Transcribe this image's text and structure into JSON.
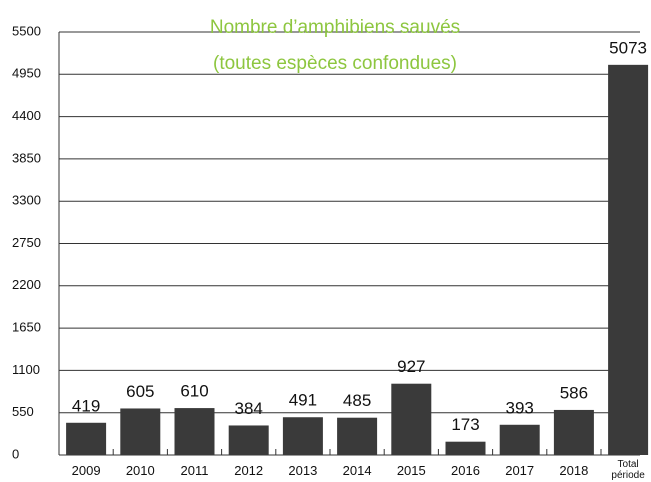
{
  "chart_data": {
    "type": "bar",
    "title": [
      "Nombre d’amphibiens sauvés",
      "(toutes espèces confondues)"
    ],
    "categories": [
      "2009",
      "2010",
      "2011",
      "2012",
      "2013",
      "2014",
      "2015",
      "2016",
      "2017",
      "2018",
      "Total période"
    ],
    "values": [
      419,
      605,
      610,
      384,
      491,
      485,
      927,
      173,
      393,
      586,
      5073
    ],
    "color": "#3a3a3a",
    "ylim": [
      0,
      5500
    ],
    "yticks": [
      0,
      550,
      1100,
      1650,
      2200,
      2750,
      3300,
      3850,
      4400,
      4950,
      5500
    ],
    "grid": true
  }
}
